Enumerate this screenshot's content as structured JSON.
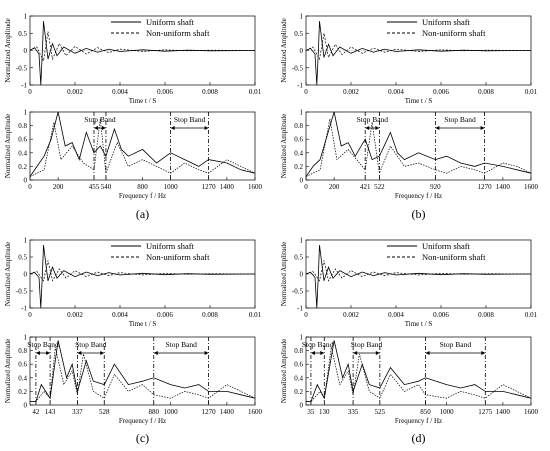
{
  "figure": {
    "legend": {
      "solid": "Uniform shaft",
      "dashed": "Non-uniform shaft"
    },
    "subplots": [
      {
        "label": "(a)",
        "bold_letter": "a",
        "cutoffs": [
          455,
          540,
          1000,
          1270
        ],
        "freq_ticks": [
          "0",
          "200",
          "455",
          "540",
          "800",
          "1000",
          "1270",
          "1400",
          "1600"
        ]
      },
      {
        "label": "(b)",
        "bold_letter": "b",
        "cutoffs": [
          421,
          522,
          920,
          1270
        ],
        "freq_ticks": [
          "0",
          "200",
          "421",
          "522",
          "920",
          "1270",
          "1400",
          "1600"
        ]
      },
      {
        "label": "(c)",
        "bold_letter": "c",
        "cutoffs": [
          42,
          143,
          337,
          528,
          880,
          1270
        ],
        "freq_ticks": [
          "42",
          "143",
          "337",
          "528",
          "880",
          "1000",
          "1270",
          "1400",
          "1600"
        ]
      },
      {
        "label": "(d)",
        "bold_letter": "d",
        "cutoffs": [
          35,
          130,
          335,
          525,
          850,
          1275
        ],
        "freq_ticks": [
          "35",
          "130",
          "335",
          "525",
          "850",
          "1000",
          "1275",
          "1400",
          "1600"
        ]
      }
    ],
    "time_axis": {
      "label": "Time t / S",
      "ticks": [
        "0",
        "0.002",
        "0.004",
        "0.006",
        "0.008",
        "0.01"
      ],
      "range": [
        0,
        0.01
      ]
    },
    "freq_axis": {
      "label": "Frequency f / Hz",
      "range": [
        0,
        1600
      ]
    },
    "time_amp_ticks": [
      "1",
      "0.5",
      "0",
      "-0.5",
      "-1"
    ],
    "freq_amp_ticks": [
      "1",
      "0.8",
      "0.6",
      "0.4",
      "0.2",
      "0"
    ],
    "ylabel": "Normalized Amplitude",
    "stop_band_label": "Stop Band"
  },
  "chart_data": [
    {
      "type": "line",
      "panel": "(a) time",
      "xlabel": "Time t / S",
      "ylabel": "Normalized Amplitude",
      "xlim": [
        0,
        0.01
      ],
      "ylim": [
        -1,
        1
      ],
      "series": [
        {
          "name": "Uniform shaft",
          "x": [
            0,
            0.0002,
            0.0004,
            0.00048,
            0.00055,
            0.0006,
            0.0007,
            0.0008,
            0.001,
            0.0012,
            0.0015,
            0.002,
            0.0025,
            0.003,
            0.0035,
            0.004,
            0.005,
            0.006,
            0.007,
            0.008,
            0.01
          ],
          "values": [
            0.0,
            0.08,
            -0.1,
            -1.0,
            0.0,
            0.85,
            0.3,
            -0.25,
            0.2,
            -0.15,
            0.1,
            -0.08,
            0.06,
            -0.05,
            0.04,
            -0.03,
            0.02,
            -0.02,
            0.01,
            -0.01,
            0.0
          ]
        },
        {
          "name": "Non-uniform shaft",
          "x": [
            0,
            0.0003,
            0.0006,
            0.0008,
            0.001,
            0.0013,
            0.0016,
            0.002,
            0.0025,
            0.003,
            0.0035,
            0.004,
            0.005,
            0.006,
            0.007,
            0.008,
            0.01
          ],
          "values": [
            0.0,
            0.1,
            -0.3,
            0.55,
            -0.25,
            0.2,
            -0.15,
            0.12,
            -0.1,
            0.08,
            -0.06,
            0.04,
            -0.03,
            0.02,
            -0.01,
            0.01,
            0.0
          ]
        }
      ]
    },
    {
      "type": "line",
      "panel": "(a) frequency",
      "xlabel": "Frequency f / Hz",
      "ylabel": "Normalized Amplitude",
      "xlim": [
        0,
        1600
      ],
      "ylim": [
        0,
        1
      ],
      "stop_bands": [
        [
          455,
          540
        ],
        [
          1000,
          1270
        ]
      ],
      "series": [
        {
          "name": "Uniform shaft",
          "x": [
            0,
            50,
            100,
            150,
            200,
            250,
            300,
            350,
            400,
            455,
            500,
            540,
            600,
            650,
            700,
            800,
            900,
            1000,
            1100,
            1200,
            1270,
            1400,
            1500,
            1600
          ],
          "values": [
            0.05,
            0.2,
            0.35,
            0.6,
            1.0,
            0.5,
            0.55,
            0.3,
            0.7,
            0.4,
            0.5,
            0.35,
            0.75,
            0.45,
            0.35,
            0.45,
            0.25,
            0.4,
            0.3,
            0.2,
            0.3,
            0.25,
            0.15,
            0.1
          ]
        },
        {
          "name": "Non-uniform shaft",
          "x": [
            0,
            100,
            170,
            220,
            300,
            380,
            455,
            500,
            540,
            620,
            700,
            800,
            900,
            1000,
            1100,
            1200,
            1270,
            1400,
            1500,
            1600
          ],
          "values": [
            0.05,
            0.15,
            0.85,
            0.3,
            0.5,
            0.25,
            0.15,
            0.9,
            0.1,
            0.55,
            0.2,
            0.3,
            0.2,
            0.1,
            0.25,
            0.15,
            0.1,
            0.3,
            0.2,
            0.1
          ]
        }
      ]
    },
    {
      "type": "line",
      "panel": "(b) time",
      "xlabel": "Time t / S",
      "ylabel": "Normalized Amplitude",
      "xlim": [
        0,
        0.01
      ],
      "ylim": [
        -1,
        1
      ],
      "series": [
        {
          "name": "Uniform shaft",
          "x": [
            0,
            0.0002,
            0.0004,
            0.00048,
            0.00055,
            0.0006,
            0.0007,
            0.0008,
            0.001,
            0.0012,
            0.0015,
            0.002,
            0.0025,
            0.003,
            0.0035,
            0.004,
            0.005,
            0.006,
            0.007,
            0.008,
            0.01
          ],
          "values": [
            0.0,
            0.06,
            -0.1,
            -1.0,
            0.0,
            0.85,
            0.3,
            -0.2,
            0.18,
            -0.15,
            0.1,
            -0.08,
            0.06,
            -0.05,
            0.04,
            -0.03,
            0.02,
            -0.02,
            0.01,
            -0.01,
            0.0
          ]
        },
        {
          "name": "Non-uniform shaft",
          "x": [
            0,
            0.0003,
            0.0006,
            0.0008,
            0.001,
            0.0013,
            0.0016,
            0.002,
            0.0025,
            0.003,
            0.0035,
            0.004,
            0.005,
            0.006,
            0.007,
            0.008,
            0.01
          ],
          "values": [
            0.0,
            0.1,
            -0.25,
            0.5,
            -0.2,
            0.18,
            -0.12,
            0.1,
            -0.08,
            0.07,
            -0.05,
            0.04,
            -0.03,
            0.02,
            -0.01,
            0.01,
            0.0
          ]
        }
      ]
    },
    {
      "type": "line",
      "panel": "(b) frequency",
      "xlabel": "Frequency f / Hz",
      "ylabel": "Normalized Amplitude",
      "xlim": [
        0,
        1600
      ],
      "ylim": [
        0,
        1
      ],
      "stop_bands": [
        [
          421,
          522
        ],
        [
          920,
          1270
        ]
      ],
      "series": [
        {
          "name": "Uniform shaft",
          "x": [
            0,
            50,
            100,
            150,
            200,
            250,
            300,
            350,
            421,
            470,
            522,
            600,
            650,
            700,
            800,
            920,
            1000,
            1100,
            1200,
            1270,
            1400,
            1500,
            1600
          ],
          "values": [
            0.05,
            0.2,
            0.3,
            0.65,
            1.0,
            0.5,
            0.55,
            0.35,
            0.6,
            0.3,
            0.35,
            0.7,
            0.4,
            0.3,
            0.4,
            0.3,
            0.35,
            0.25,
            0.2,
            0.25,
            0.2,
            0.15,
            0.1
          ]
        },
        {
          "name": "Non-uniform shaft",
          "x": [
            0,
            100,
            170,
            220,
            300,
            380,
            421,
            470,
            522,
            600,
            700,
            800,
            920,
            1000,
            1100,
            1200,
            1270,
            1400,
            1500,
            1600
          ],
          "values": [
            0.05,
            0.15,
            0.9,
            0.3,
            0.45,
            0.25,
            0.15,
            0.85,
            0.1,
            0.5,
            0.2,
            0.25,
            0.15,
            0.1,
            0.2,
            0.15,
            0.1,
            0.25,
            0.2,
            0.1
          ]
        }
      ]
    },
    {
      "type": "line",
      "panel": "(c) time",
      "xlabel": "Time t / S",
      "ylabel": "Normalized Amplitude",
      "xlim": [
        0,
        0.01
      ],
      "ylim": [
        -1,
        1
      ],
      "series": [
        {
          "name": "Uniform shaft",
          "x": [
            0,
            0.0002,
            0.0004,
            0.00048,
            0.00055,
            0.0006,
            0.0007,
            0.0008,
            0.001,
            0.0012,
            0.0015,
            0.002,
            0.0025,
            0.003,
            0.0035,
            0.004,
            0.005,
            0.006,
            0.007,
            0.008,
            0.01
          ],
          "values": [
            0.0,
            0.05,
            -0.1,
            -1.0,
            0.0,
            0.85,
            0.3,
            -0.2,
            0.2,
            -0.12,
            0.1,
            -0.08,
            0.06,
            -0.05,
            0.04,
            -0.03,
            0.02,
            -0.02,
            0.01,
            -0.01,
            0.0
          ]
        },
        {
          "name": "Non-uniform shaft",
          "x": [
            0,
            0.0003,
            0.0006,
            0.0008,
            0.001,
            0.0013,
            0.0016,
            0.002,
            0.0025,
            0.003,
            0.0035,
            0.004,
            0.005,
            0.006,
            0.007,
            0.008,
            0.01
          ],
          "values": [
            0.0,
            0.08,
            -0.2,
            0.4,
            -0.2,
            0.15,
            -0.12,
            0.1,
            -0.08,
            0.06,
            -0.05,
            0.04,
            -0.03,
            0.02,
            -0.01,
            0.01,
            0.0
          ]
        }
      ]
    },
    {
      "type": "line",
      "panel": "(c) frequency",
      "xlabel": "Frequency f / Hz",
      "ylabel": "Normalized Amplitude",
      "xlim": [
        0,
        1600
      ],
      "ylim": [
        0,
        1
      ],
      "stop_bands": [
        [
          42,
          143
        ],
        [
          337,
          528
        ],
        [
          880,
          1270
        ]
      ],
      "series": [
        {
          "name": "Uniform shaft",
          "x": [
            0,
            42,
            80,
            143,
            200,
            260,
            300,
            337,
            400,
            450,
            528,
            600,
            700,
            800,
            880,
            1000,
            1100,
            1200,
            1270,
            1400,
            1500,
            1600
          ],
          "values": [
            0.05,
            0.05,
            0.3,
            0.1,
            0.95,
            0.4,
            0.6,
            0.2,
            0.65,
            0.35,
            0.3,
            0.6,
            0.3,
            0.35,
            0.4,
            0.3,
            0.25,
            0.3,
            0.2,
            0.2,
            0.15,
            0.1
          ]
        },
        {
          "name": "Non-uniform shaft",
          "x": [
            0,
            42,
            100,
            143,
            180,
            240,
            300,
            337,
            380,
            450,
            528,
            600,
            700,
            800,
            880,
            1000,
            1100,
            1200,
            1270,
            1400,
            1500,
            1600
          ],
          "values": [
            0.05,
            0.05,
            0.2,
            0.1,
            0.85,
            0.3,
            0.5,
            0.15,
            0.75,
            0.2,
            0.1,
            0.45,
            0.2,
            0.3,
            0.15,
            0.1,
            0.2,
            0.15,
            0.1,
            0.3,
            0.2,
            0.1
          ]
        }
      ]
    },
    {
      "type": "line",
      "panel": "(d) time",
      "xlabel": "Time t / S",
      "ylabel": "Normalized Amplitude",
      "xlim": [
        0,
        0.01
      ],
      "ylim": [
        -1,
        1
      ],
      "series": [
        {
          "name": "Uniform shaft",
          "x": [
            0,
            0.0002,
            0.0004,
            0.00048,
            0.00055,
            0.0006,
            0.0007,
            0.0008,
            0.001,
            0.0012,
            0.0015,
            0.002,
            0.0025,
            0.003,
            0.0035,
            0.004,
            0.005,
            0.006,
            0.007,
            0.008,
            0.01
          ],
          "values": [
            0.0,
            0.05,
            -0.1,
            -1.0,
            0.0,
            0.85,
            0.3,
            -0.2,
            0.2,
            -0.12,
            0.1,
            -0.08,
            0.06,
            -0.05,
            0.04,
            -0.03,
            0.02,
            -0.02,
            0.01,
            -0.01,
            0.0
          ]
        },
        {
          "name": "Non-uniform shaft",
          "x": [
            0,
            0.0003,
            0.0006,
            0.0008,
            0.001,
            0.0013,
            0.0016,
            0.002,
            0.0025,
            0.003,
            0.0035,
            0.004,
            0.005,
            0.006,
            0.007,
            0.008,
            0.01
          ],
          "values": [
            0.0,
            0.08,
            -0.2,
            0.4,
            -0.2,
            0.15,
            -0.12,
            0.1,
            -0.08,
            0.06,
            -0.05,
            0.04,
            -0.03,
            0.02,
            -0.01,
            0.01,
            0.0
          ]
        }
      ]
    },
    {
      "type": "line",
      "panel": "(d) frequency",
      "xlabel": "Frequency f / Hz",
      "ylabel": "Normalized Amplitude",
      "xlim": [
        0,
        1600
      ],
      "ylim": [
        0,
        1
      ],
      "stop_bands": [
        [
          35,
          130
        ],
        [
          335,
          525
        ],
        [
          850,
          1275
        ]
      ],
      "series": [
        {
          "name": "Uniform shaft",
          "x": [
            0,
            35,
            80,
            130,
            200,
            260,
            300,
            335,
            400,
            450,
            525,
            600,
            700,
            800,
            850,
            1000,
            1100,
            1200,
            1275,
            1400,
            1500,
            1600
          ],
          "values": [
            0.05,
            0.05,
            0.3,
            0.1,
            0.95,
            0.4,
            0.6,
            0.2,
            0.6,
            0.3,
            0.25,
            0.55,
            0.3,
            0.35,
            0.4,
            0.3,
            0.25,
            0.3,
            0.2,
            0.2,
            0.15,
            0.1
          ]
        },
        {
          "name": "Non-uniform shaft",
          "x": [
            0,
            35,
            100,
            130,
            180,
            240,
            300,
            335,
            380,
            450,
            525,
            600,
            700,
            800,
            850,
            1000,
            1100,
            1200,
            1275,
            1400,
            1500,
            1600
          ],
          "values": [
            0.05,
            0.05,
            0.2,
            0.1,
            0.85,
            0.3,
            0.5,
            0.15,
            0.75,
            0.2,
            0.1,
            0.45,
            0.2,
            0.3,
            0.15,
            0.1,
            0.2,
            0.15,
            0.1,
            0.3,
            0.2,
            0.1
          ]
        }
      ]
    }
  ]
}
